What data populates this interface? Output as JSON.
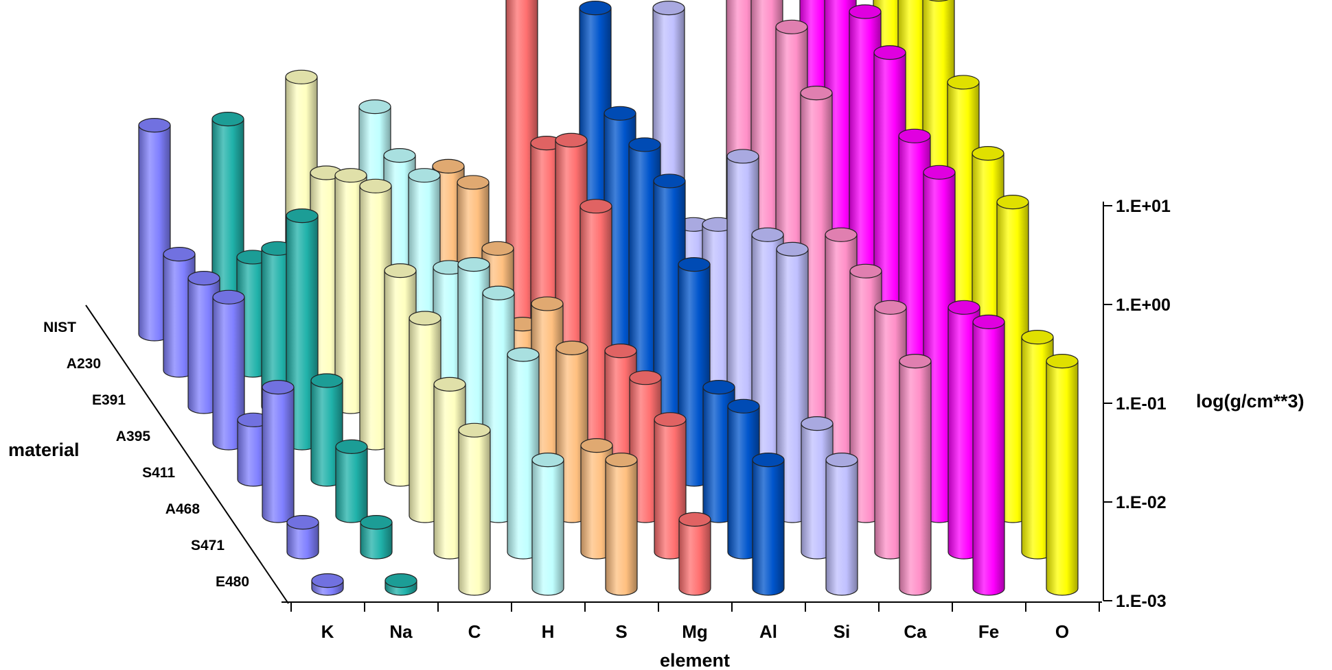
{
  "chart_data": {
    "type": "bar",
    "subtype": "3d-cylinder",
    "xlabel": "element",
    "zlabel": "material",
    "ylabel": "log(g/cm**3)",
    "yscale": "log",
    "ylim": [
      0.001,
      10
    ],
    "ytick_labels": [
      "1.E-03",
      "1.E-02",
      "1.E-01",
      "1.E+00",
      "1.E+01"
    ],
    "categories": [
      "K",
      "Na",
      "C",
      "H",
      "S",
      "Mg",
      "Al",
      "Si",
      "Ca",
      "Fe",
      "O"
    ],
    "materials": [
      "NIST",
      "A230",
      "E391",
      "A395",
      "S411",
      "A468",
      "S471",
      "E480"
    ],
    "colors": [
      "#8080ff",
      "#20b2aa",
      "#ffffc0",
      "#c0ffff",
      "#ffc080",
      "#ff7070",
      "#0055cc",
      "#c0c0ff",
      "#ff90c8",
      "#ff00ff",
      "#ffff00"
    ],
    "series": [
      {
        "name": "NIST",
        "values": [
          0.13,
          0.15,
          0.4,
          0.2,
          0.05,
          5.0,
          2.0,
          2.0,
          20,
          30,
          50
        ]
      },
      {
        "name": "A230",
        "values": [
          0.015,
          0.014,
          0.1,
          0.15,
          0.08,
          0.2,
          0.4,
          0.03,
          7,
          15,
          10
        ]
      },
      {
        "name": "E391",
        "values": [
          0.02,
          0.04,
          0.22,
          0.22,
          0.04,
          0.5,
          0.45,
          0.07,
          7.0,
          10.0,
          15.0
        ]
      },
      {
        "name": "A395",
        "values": [
          0.03,
          0.2,
          0.4,
          0.06,
          0.016,
          0.25,
          0.45,
          0.8,
          3.5,
          9.0,
          4.5
        ]
      },
      {
        "name": "S411",
        "values": [
          0.004,
          0.01,
          0.13,
          0.15,
          0.06,
          0.02,
          0.15,
          0.3,
          0.3,
          3.0,
          2.0
        ]
      },
      {
        "name": "A468",
        "values": [
          0.02,
          0.005,
          0.1,
          0.18,
          0.05,
          0.025,
          0.02,
          0.5,
          0.3,
          3.0,
          1.5
        ]
      },
      {
        "name": "S471",
        "values": [
          0.002,
          0.002,
          0.05,
          0.1,
          0.012,
          0.022,
          0.03,
          0.02,
          0.3,
          0.3,
          0.15
        ]
      },
      {
        "name": "E480",
        "values": [
          0.0012,
          0.0012,
          0.04,
          0.02,
          0.02,
          0.005,
          0.02,
          0.02,
          0.2,
          0.5,
          0.2
        ]
      }
    ],
    "grid": false,
    "legend": "none"
  }
}
